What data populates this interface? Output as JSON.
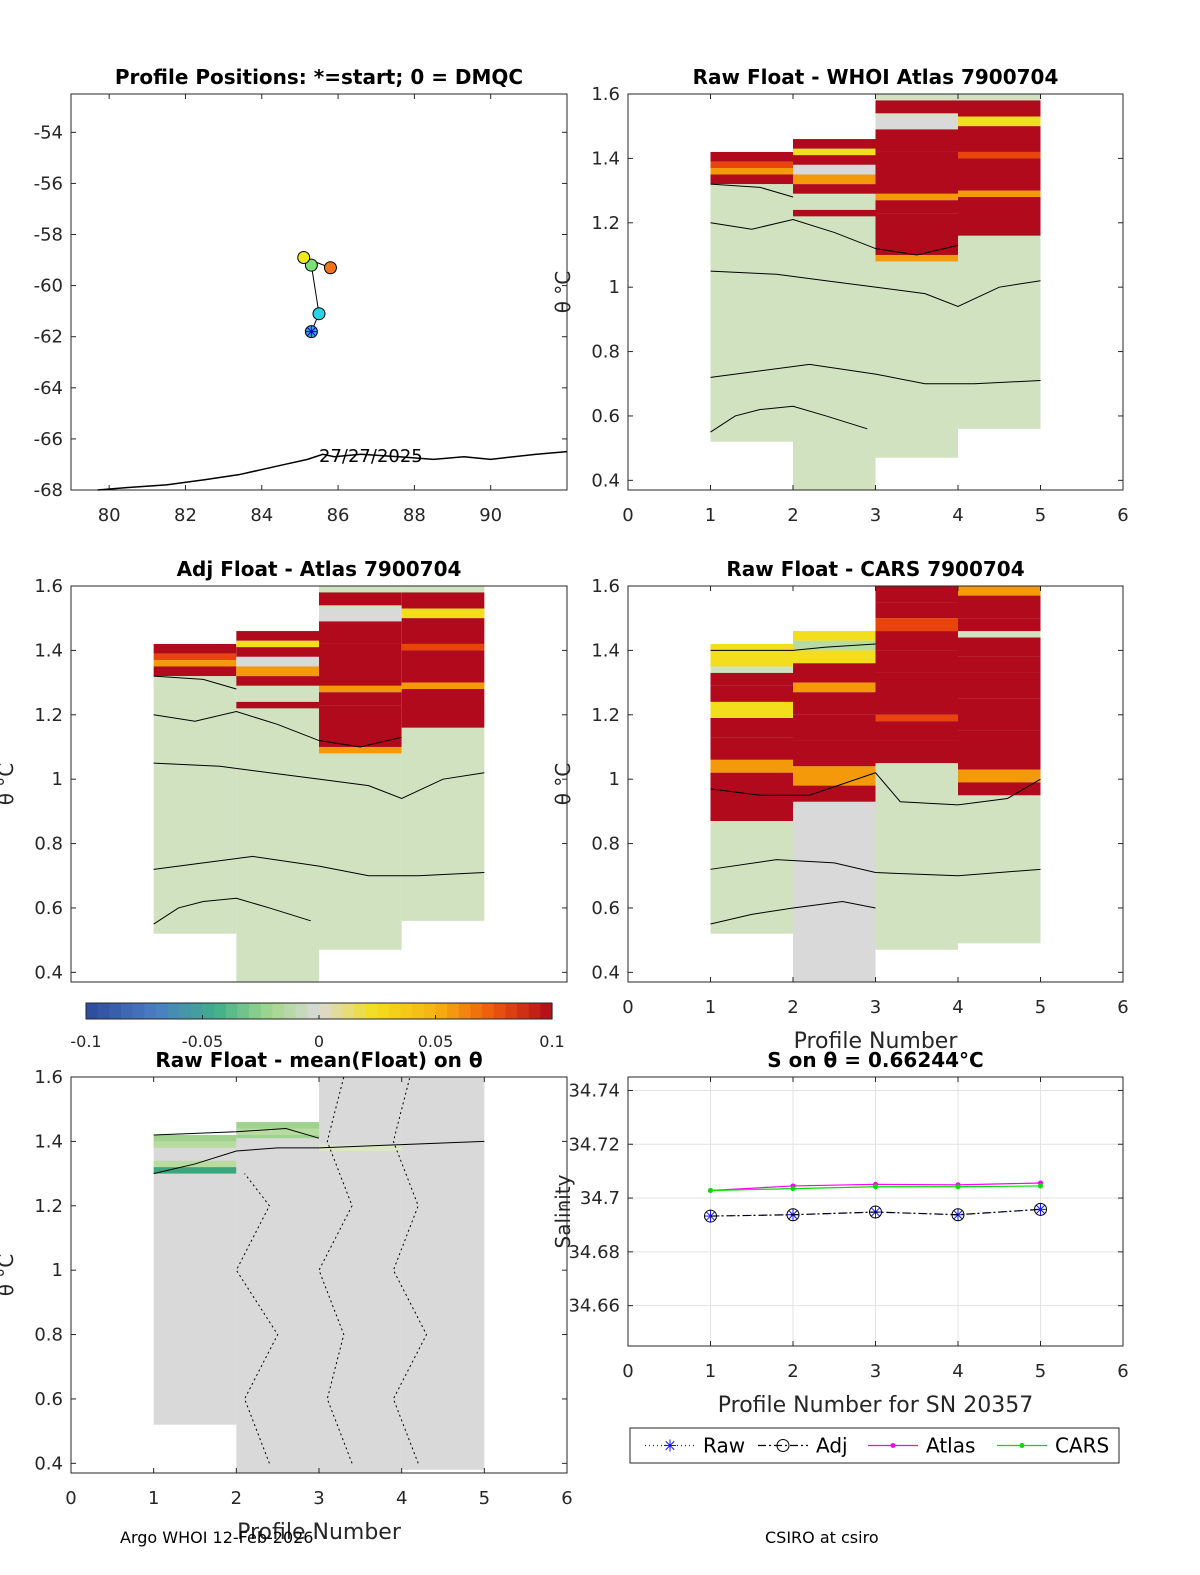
{
  "colors": {
    "neutral": "#d9d9d9",
    "light_green": "#d1e2c0",
    "pale_green": "#dbe8c6",
    "mid_green": "#b8dca0",
    "green": "#9fd38d",
    "teal": "#3aa67e",
    "yellow": "#f3de1d",
    "orange": "#f49a0a",
    "red_orange": "#e8440c",
    "dark_red": "#b00a1c",
    "magenta": "#ff00ff",
    "lime": "#00e000",
    "navy": "#0a0a5a",
    "blue": "#1414ff"
  },
  "footer": {
    "left": "Argo WHOI 12-Feb-2026",
    "right": "CSIRO at csiro"
  },
  "chart_data": [
    {
      "id": "positions",
      "type": "scatter",
      "title": "Profile Positions: *=start; 0 = DMQC",
      "xlim": [
        79,
        92
      ],
      "ylim": [
        -68,
        -52.5
      ],
      "xticks": [
        80,
        82,
        84,
        86,
        88,
        90
      ],
      "yticks": [
        -54,
        -56,
        -58,
        -60,
        -62,
        -64,
        -66,
        -68
      ],
      "points": [
        {
          "profile": 1,
          "lon": 85.3,
          "lat": -61.8,
          "color": "#2aa9e0",
          "marker": "start"
        },
        {
          "profile": 2,
          "lon": 85.5,
          "lat": -61.1,
          "color": "#29d4e6"
        },
        {
          "profile": 3,
          "lon": 85.3,
          "lat": -59.2,
          "color": "#7be07a"
        },
        {
          "profile": 4,
          "lon": 85.1,
          "lat": -58.9,
          "color": "#f0e81e"
        },
        {
          "profile": 5,
          "lon": 85.8,
          "lat": -59.3,
          "color": "#f0741e"
        }
      ],
      "coastline": [
        [
          79.7,
          -68.0
        ],
        [
          80.5,
          -67.9
        ],
        [
          81.5,
          -67.8
        ],
        [
          82.5,
          -67.6
        ],
        [
          83.4,
          -67.4
        ],
        [
          84.0,
          -67.2
        ],
        [
          84.6,
          -67.0
        ],
        [
          85.2,
          -66.8
        ],
        [
          85.6,
          -66.6
        ],
        [
          85.9,
          -66.7
        ],
        [
          86.6,
          -66.6
        ],
        [
          87.6,
          -66.7
        ],
        [
          88.5,
          -66.8
        ],
        [
          89.3,
          -66.7
        ],
        [
          90.0,
          -66.8
        ],
        [
          90.6,
          -66.7
        ],
        [
          91.2,
          -66.6
        ],
        [
          92.0,
          -66.5
        ]
      ],
      "annotation": "27/27/2025",
      "annotation_at": [
        85.5,
        -66.9
      ]
    },
    {
      "id": "raw_atlas",
      "type": "heatmap",
      "title": "Raw Float - WHOI Atlas  7900704",
      "xlim": [
        0,
        6
      ],
      "ylim": [
        0.37,
        1.6
      ],
      "xticks": [
        0,
        1,
        2,
        3,
        4,
        5,
        6
      ],
      "yticks": [
        0.4,
        0.6,
        0.8,
        1,
        1.2,
        1.4,
        1.6
      ],
      "ylabel": "θ °C",
      "columns": [
        {
          "x0": 1,
          "x1": 2,
          "ymin": 0.52,
          "ymax": 1.42,
          "bands": [
            [
              1.39,
              1.42,
              "dark_red"
            ],
            [
              1.37,
              1.39,
              "red_orange"
            ],
            [
              1.35,
              1.37,
              "orange"
            ],
            [
              1.32,
              1.35,
              "dark_red"
            ],
            [
              1.29,
              1.32,
              "light_green"
            ]
          ]
        },
        {
          "x0": 2,
          "x1": 3,
          "ymin": 0.37,
          "ymax": 1.46,
          "bands": [
            [
              1.43,
              1.46,
              "dark_red"
            ],
            [
              1.41,
              1.43,
              "yellow"
            ],
            [
              1.38,
              1.41,
              "dark_red"
            ],
            [
              1.35,
              1.38,
              "neutral"
            ],
            [
              1.32,
              1.35,
              "orange"
            ],
            [
              1.29,
              1.32,
              "dark_red"
            ],
            [
              1.26,
              1.29,
              "light_green"
            ],
            [
              1.22,
              1.24,
              "dark_red"
            ]
          ]
        },
        {
          "x0": 3,
          "x1": 4,
          "ymin": 0.47,
          "ymax": 1.6,
          "bands": [
            [
              1.54,
              1.58,
              "dark_red"
            ],
            [
              1.49,
              1.53,
              "neutral"
            ],
            [
              1.42,
              1.49,
              "dark_red"
            ],
            [
              1.29,
              1.42,
              "dark_red"
            ],
            [
              1.27,
              1.29,
              "orange"
            ],
            [
              1.23,
              1.27,
              "dark_red"
            ],
            [
              1.1,
              1.23,
              "dark_red"
            ],
            [
              1.08,
              1.1,
              "orange"
            ]
          ]
        },
        {
          "x0": 4,
          "x1": 5,
          "ymin": 0.56,
          "ymax": 1.6,
          "bands": [
            [
              1.53,
              1.58,
              "dark_red"
            ],
            [
              1.5,
              1.53,
              "yellow"
            ],
            [
              1.42,
              1.5,
              "dark_red"
            ],
            [
              1.4,
              1.42,
              "red_orange"
            ],
            [
              1.3,
              1.4,
              "dark_red"
            ],
            [
              1.28,
              1.3,
              "orange"
            ],
            [
              1.16,
              1.28,
              "dark_red"
            ]
          ]
        }
      ]
    },
    {
      "id": "adj_atlas",
      "type": "heatmap",
      "title": "Adj Float - Atlas  7900704",
      "xlim": [
        0,
        6
      ],
      "ylim": [
        0.37,
        1.6
      ],
      "xticks": [],
      "yticks": [
        0.4,
        0.6,
        0.8,
        1,
        1.2,
        1.4,
        1.6
      ],
      "ylabel": "θ °C",
      "columns": [
        {
          "x0": 1,
          "x1": 2,
          "ymin": 0.52,
          "ymax": 1.42,
          "bands": [
            [
              1.39,
              1.42,
              "dark_red"
            ],
            [
              1.37,
              1.39,
              "red_orange"
            ],
            [
              1.35,
              1.37,
              "orange"
            ],
            [
              1.32,
              1.35,
              "dark_red"
            ],
            [
              1.29,
              1.32,
              "light_green"
            ]
          ]
        },
        {
          "x0": 2,
          "x1": 3,
          "ymin": 0.37,
          "ymax": 1.46,
          "bands": [
            [
              1.43,
              1.46,
              "dark_red"
            ],
            [
              1.41,
              1.43,
              "yellow"
            ],
            [
              1.38,
              1.41,
              "dark_red"
            ],
            [
              1.35,
              1.38,
              "neutral"
            ],
            [
              1.32,
              1.35,
              "orange"
            ],
            [
              1.29,
              1.32,
              "dark_red"
            ],
            [
              1.26,
              1.29,
              "light_green"
            ],
            [
              1.22,
              1.24,
              "dark_red"
            ]
          ]
        },
        {
          "x0": 3,
          "x1": 4,
          "ymin": 0.47,
          "ymax": 1.6,
          "bands": [
            [
              1.54,
              1.58,
              "dark_red"
            ],
            [
              1.49,
              1.53,
              "neutral"
            ],
            [
              1.42,
              1.49,
              "dark_red"
            ],
            [
              1.29,
              1.42,
              "dark_red"
            ],
            [
              1.27,
              1.29,
              "orange"
            ],
            [
              1.23,
              1.27,
              "dark_red"
            ],
            [
              1.1,
              1.23,
              "dark_red"
            ],
            [
              1.08,
              1.1,
              "orange"
            ]
          ]
        },
        {
          "x0": 4,
          "x1": 5,
          "ymin": 0.56,
          "ymax": 1.6,
          "bands": [
            [
              1.53,
              1.58,
              "dark_red"
            ],
            [
              1.5,
              1.53,
              "yellow"
            ],
            [
              1.42,
              1.5,
              "dark_red"
            ],
            [
              1.4,
              1.42,
              "red_orange"
            ],
            [
              1.3,
              1.4,
              "dark_red"
            ],
            [
              1.28,
              1.3,
              "orange"
            ],
            [
              1.16,
              1.28,
              "dark_red"
            ]
          ]
        }
      ]
    },
    {
      "id": "raw_cars",
      "type": "heatmap",
      "title": "Raw Float - CARS  7900704",
      "xlim": [
        0,
        6
      ],
      "ylim": [
        0.37,
        1.6
      ],
      "xticks": [
        0,
        1,
        2,
        3,
        4,
        5,
        6
      ],
      "yticks": [
        0.4,
        0.6,
        0.8,
        1,
        1.2,
        1.4,
        1.6
      ],
      "ylabel": "θ °C",
      "xlabel": "Profile Number",
      "columns": [
        {
          "x0": 1,
          "x1": 2,
          "ymin": 0.52,
          "ymax": 1.42,
          "bands": [
            [
              1.39,
              1.42,
              "yellow"
            ],
            [
              1.35,
              1.39,
              "yellow"
            ],
            [
              1.29,
              1.33,
              "dark_red"
            ],
            [
              1.24,
              1.29,
              "dark_red"
            ],
            [
              1.19,
              1.24,
              "yellow"
            ],
            [
              1.13,
              1.19,
              "dark_red"
            ],
            [
              1.06,
              1.13,
              "dark_red"
            ],
            [
              1.02,
              1.06,
              "orange"
            ],
            [
              0.94,
              1.02,
              "dark_red"
            ],
            [
              0.87,
              0.94,
              "dark_red"
            ]
          ]
        },
        {
          "x0": 2,
          "x1": 3,
          "ymin": 0.37,
          "ymax": 1.46,
          "bands": [
            [
              1.43,
              1.46,
              "yellow"
            ],
            [
              1.4,
              1.43,
              "mid_green"
            ],
            [
              1.36,
              1.4,
              "yellow"
            ],
            [
              1.3,
              1.36,
              "dark_red"
            ],
            [
              1.27,
              1.3,
              "orange"
            ],
            [
              1.2,
              1.27,
              "dark_red"
            ],
            [
              1.12,
              1.2,
              "dark_red"
            ],
            [
              1.04,
              1.12,
              "dark_red"
            ],
            [
              0.98,
              1.04,
              "orange"
            ],
            [
              0.93,
              0.98,
              "dark_red"
            ]
          ]
        },
        {
          "x0": 3,
          "x1": 4,
          "ymin": 0.47,
          "ymax": 1.6,
          "bands": [
            [
              1.55,
              1.6,
              "dark_red"
            ],
            [
              1.5,
              1.55,
              "dark_red"
            ],
            [
              1.46,
              1.5,
              "red_orange"
            ],
            [
              1.4,
              1.46,
              "dark_red"
            ],
            [
              1.33,
              1.4,
              "dark_red"
            ],
            [
              1.2,
              1.33,
              "dark_red"
            ],
            [
              1.18,
              1.2,
              "red_orange"
            ],
            [
              1.12,
              1.18,
              "dark_red"
            ],
            [
              1.05,
              1.12,
              "dark_red"
            ]
          ]
        },
        {
          "x0": 4,
          "x1": 5,
          "ymin": 0.49,
          "ymax": 1.6,
          "bands": [
            [
              1.57,
              1.6,
              "orange"
            ],
            [
              1.5,
              1.57,
              "dark_red"
            ],
            [
              1.46,
              1.5,
              "dark_red"
            ],
            [
              1.38,
              1.44,
              "dark_red"
            ],
            [
              1.33,
              1.38,
              "dark_red"
            ],
            [
              1.25,
              1.33,
              "dark_red"
            ],
            [
              1.15,
              1.25,
              "dark_red"
            ],
            [
              1.03,
              1.15,
              "dark_red"
            ],
            [
              0.99,
              1.03,
              "orange"
            ],
            [
              0.95,
              0.99,
              "dark_red"
            ]
          ]
        }
      ]
    },
    {
      "id": "raw_mean",
      "type": "heatmap",
      "title": "Raw Float - mean(Float) on θ",
      "xlim": [
        0,
        6
      ],
      "ylim": [
        0.37,
        1.6
      ],
      "xticks": [
        0,
        1,
        2,
        3,
        4,
        5,
        6
      ],
      "yticks": [
        0.4,
        0.6,
        0.8,
        1,
        1.2,
        1.4,
        1.6
      ],
      "ylabel": "θ °C",
      "xlabel": "Profile Number",
      "columns": [
        {
          "x0": 1,
          "x1": 2,
          "ymin": 0.52,
          "ymax": 1.42,
          "bands": [
            [
              1.4,
              1.42,
              "green"
            ],
            [
              1.38,
              1.4,
              "mid_green"
            ],
            [
              1.32,
              1.34,
              "mid_green"
            ],
            [
              1.3,
              1.32,
              "teal"
            ]
          ]
        },
        {
          "x0": 2,
          "x1": 3,
          "ymin": 0.37,
          "ymax": 1.46,
          "bands": [
            [
              1.44,
              1.46,
              "green"
            ],
            [
              1.42,
              1.44,
              "mid_green"
            ],
            [
              1.41,
              1.42,
              "green"
            ]
          ]
        },
        {
          "x0": 3,
          "x1": 4,
          "ymin": 0.37,
          "ymax": 1.6,
          "bands": [
            [
              1.37,
              1.39,
              "pale_green"
            ]
          ]
        },
        {
          "x0": 4,
          "x1": 5,
          "ymin": 0.38,
          "ymax": 1.6,
          "bands": []
        }
      ]
    },
    {
      "id": "salinity",
      "type": "line",
      "title": "S on θ = 0.66244°C",
      "xlabel": "Profile Number for SN 20357",
      "ylabel": "Salinity",
      "xlim": [
        0,
        6
      ],
      "ylim": [
        34.645,
        34.745
      ],
      "xticks": [
        0,
        1,
        2,
        3,
        4,
        5,
        6
      ],
      "yticks": [
        34.66,
        34.68,
        34.7,
        34.72,
        34.74
      ],
      "ytick_labels": [
        "34.66",
        "34.68",
        "34.7",
        "34.72",
        "34.74"
      ],
      "x": [
        1,
        2,
        3,
        4,
        5
      ],
      "series": [
        {
          "name": "Raw",
          "values": [
            34.6933,
            34.6938,
            34.6948,
            34.6938,
            34.6958
          ],
          "color": "#1414ff",
          "dash": "1 3",
          "marker": "star"
        },
        {
          "name": "Adj",
          "values": [
            34.6933,
            34.6938,
            34.6948,
            34.6938,
            34.6958
          ],
          "color": "#000000",
          "dash": "8 3 2 3",
          "marker": "circle"
        },
        {
          "name": "Atlas",
          "values": [
            34.7028,
            34.7045,
            34.7051,
            34.7049,
            34.7056
          ],
          "color": "#ff00ff",
          "dash": "",
          "marker": "dot"
        },
        {
          "name": "CARS",
          "values": [
            34.7028,
            34.7035,
            34.7042,
            34.7042,
            34.7045
          ],
          "color": "#00e000",
          "dash": "",
          "marker": "dot"
        }
      ]
    },
    {
      "id": "colorbar",
      "type": "heatmap",
      "range": [
        -0.1,
        0.1
      ],
      "ticks": [
        -0.1,
        -0.05,
        0,
        0.05,
        0.1
      ],
      "tick_labels": [
        "-0.1",
        "-0.05",
        "0",
        "0.05",
        "0.1"
      ]
    }
  ]
}
